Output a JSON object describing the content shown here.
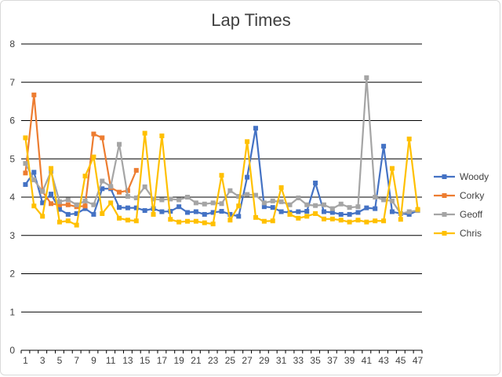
{
  "chart_data": {
    "type": "line",
    "title": "Lap Times",
    "xlabel": "",
    "ylabel": "",
    "ylim": [
      0,
      8
    ],
    "yticks": [
      0,
      1,
      2,
      3,
      4,
      5,
      6,
      7,
      8
    ],
    "x": [
      1,
      2,
      3,
      4,
      5,
      6,
      7,
      8,
      9,
      10,
      11,
      12,
      13,
      14,
      15,
      16,
      17,
      18,
      19,
      20,
      21,
      22,
      23,
      24,
      25,
      26,
      27,
      28,
      29,
      30,
      31,
      32,
      33,
      34,
      35,
      36,
      37,
      38,
      39,
      40,
      41,
      42,
      43,
      44,
      45,
      46,
      47
    ],
    "xtick_labels": [
      1,
      3,
      5,
      7,
      9,
      11,
      13,
      15,
      17,
      19,
      21,
      23,
      25,
      27,
      29,
      31,
      33,
      35,
      37,
      39,
      41,
      43,
      45,
      47
    ],
    "grid": true,
    "legend_position": "right",
    "series": [
      {
        "name": "Woody",
        "color": "#4472c4",
        "values": [
          4.33,
          4.65,
          3.85,
          4.08,
          3.68,
          3.55,
          3.57,
          3.7,
          3.55,
          4.22,
          4.22,
          3.73,
          3.72,
          3.72,
          3.65,
          3.7,
          3.62,
          3.63,
          3.75,
          3.6,
          3.62,
          3.55,
          3.6,
          3.63,
          3.55,
          3.5,
          4.52,
          5.8,
          3.75,
          3.73,
          3.62,
          3.6,
          3.62,
          3.63,
          4.37,
          3.62,
          3.6,
          3.55,
          3.55,
          3.6,
          3.72,
          3.7,
          5.33,
          3.62,
          3.57,
          3.55,
          3.65
        ]
      },
      {
        "name": "Corky",
        "color": "#ed7d31",
        "values": [
          4.63,
          6.67,
          4.15,
          3.83,
          3.8,
          3.8,
          3.75,
          3.77,
          5.65,
          5.55,
          4.25,
          4.13,
          4.17,
          4.7,
          null,
          null,
          null,
          null,
          null,
          null,
          null,
          null,
          null,
          null,
          null,
          null,
          null,
          null,
          null,
          null,
          null,
          null,
          null,
          null,
          null,
          null,
          null,
          null,
          null,
          null,
          null,
          null,
          null,
          null,
          null,
          null,
          null
        ]
      },
      {
        "name": "Geoff",
        "color": "#a5a5a5",
        "values": [
          4.88,
          4.45,
          4.15,
          4.67,
          3.88,
          3.93,
          3.8,
          3.9,
          3.8,
          4.42,
          4.28,
          5.38,
          4.02,
          3.98,
          4.27,
          3.95,
          3.93,
          3.95,
          3.93,
          4.0,
          3.85,
          3.82,
          3.85,
          3.83,
          4.17,
          4.02,
          4.07,
          4.05,
          3.85,
          3.9,
          3.88,
          3.8,
          3.98,
          3.8,
          3.78,
          3.8,
          3.7,
          3.82,
          3.73,
          3.75,
          7.12,
          4.0,
          3.93,
          3.9,
          3.57,
          3.62,
          3.65
        ]
      },
      {
        "name": "Chris",
        "color": "#ffc000",
        "values": [
          5.55,
          3.77,
          3.5,
          4.75,
          3.35,
          3.38,
          3.27,
          4.55,
          5.05,
          3.57,
          3.85,
          3.45,
          3.4,
          3.38,
          5.67,
          3.55,
          5.6,
          3.42,
          3.35,
          3.37,
          3.37,
          3.33,
          3.3,
          4.57,
          3.4,
          3.77,
          5.45,
          3.47,
          3.37,
          3.38,
          4.25,
          3.55,
          3.45,
          3.5,
          3.57,
          3.43,
          3.43,
          3.4,
          3.35,
          3.4,
          3.35,
          3.38,
          3.38,
          4.75,
          3.42,
          5.52,
          3.68
        ]
      }
    ]
  }
}
